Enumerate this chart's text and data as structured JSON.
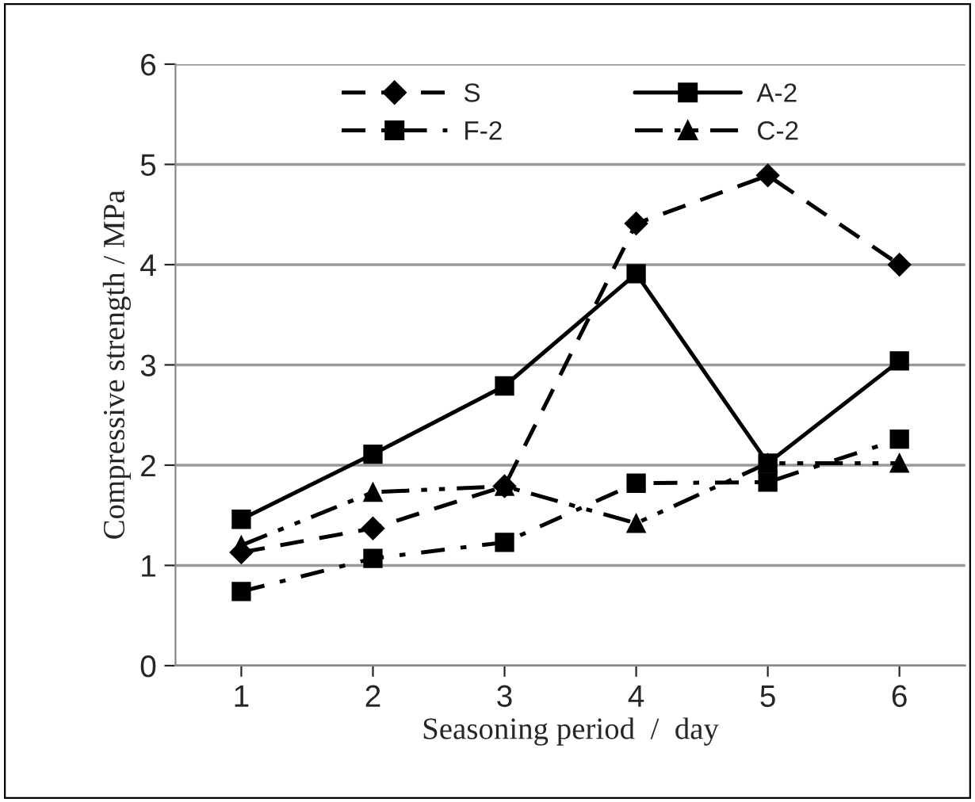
{
  "chart_data": {
    "type": "line",
    "xlabel": "Seasoning period  /  day",
    "ylabel": "Compressive strength / MPa",
    "categories": [
      "1",
      "2",
      "3",
      "4",
      "5",
      "6"
    ],
    "series": [
      {
        "name": "S",
        "color": "#000000",
        "marker": "diamond",
        "line_style": "dashed",
        "values": [
          1.13,
          1.37,
          1.79,
          4.41,
          4.89,
          4.0
        ]
      },
      {
        "name": "A-2",
        "color": "#000000",
        "marker": "square",
        "line_style": "solid",
        "values": [
          1.46,
          2.11,
          2.79,
          3.91,
          2.02,
          3.04
        ]
      },
      {
        "name": "F-2",
        "color": "#000000",
        "marker": "square",
        "line_style": "dashdot",
        "values": [
          0.74,
          1.07,
          1.23,
          1.82,
          1.83,
          2.26
        ]
      },
      {
        "name": "C-2",
        "color": "#000000",
        "marker": "triangle",
        "line_style": "dashdotdot",
        "values": [
          1.2,
          1.73,
          1.79,
          1.42,
          2.02,
          2.02
        ]
      }
    ],
    "ylim": [
      0,
      6
    ],
    "yticks": [
      0,
      1,
      2,
      3,
      4,
      5,
      6
    ],
    "grid": "y",
    "legend": "top"
  }
}
